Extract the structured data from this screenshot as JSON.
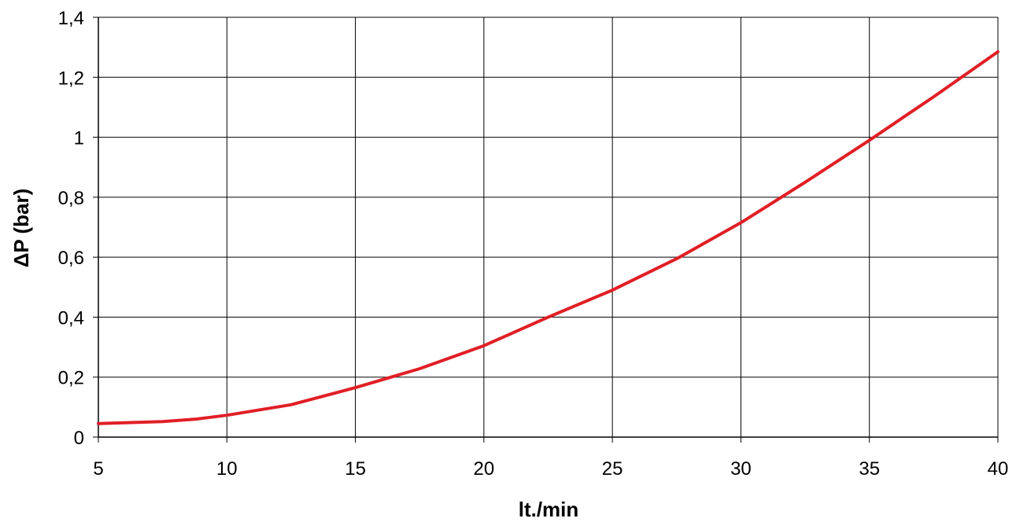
{
  "chart_data": {
    "type": "line",
    "title": "",
    "xlabel": "lt./min",
    "ylabel": "ΔP (bar)",
    "xlim": [
      5,
      40
    ],
    "ylim": [
      0,
      1.4
    ],
    "grid": true,
    "x_ticks": [
      5,
      10,
      15,
      20,
      25,
      30,
      35,
      40
    ],
    "x_tick_labels": [
      "5",
      "10",
      "15",
      "20",
      "25",
      "30",
      "35",
      "40"
    ],
    "y_ticks": [
      0,
      0.2,
      0.4,
      0.6,
      0.8,
      1,
      1.2,
      1.4
    ],
    "y_tick_labels": [
      "0",
      "0,2",
      "0,4",
      "0,6",
      "0,8",
      "1",
      "1,2",
      "1,4"
    ],
    "series": [
      {
        "color": "#e01f26",
        "x": [
          5,
          7.5,
          8.8,
          10,
          12.5,
          15,
          17.5,
          20,
          22.5,
          25,
          27.5,
          30,
          32.5,
          35,
          37.5,
          40
        ],
        "y": [
          0.045,
          0.052,
          0.06,
          0.073,
          0.108,
          0.165,
          0.228,
          0.305,
          0.4,
          0.49,
          0.595,
          0.715,
          0.85,
          0.99,
          1.135,
          1.285
        ]
      }
    ]
  }
}
